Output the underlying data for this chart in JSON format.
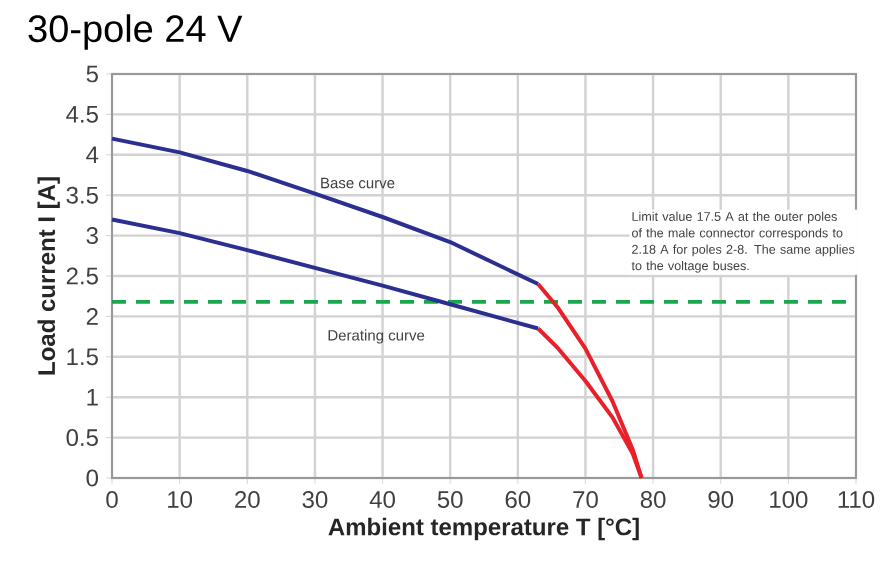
{
  "chart_data": {
    "type": "line",
    "title": "30-pole 24 V",
    "xlabel": "Ambient temperature T [°C]",
    "ylabel": "Load current I [A]",
    "xlim": [
      0,
      110
    ],
    "ylim": [
      0,
      5
    ],
    "xticks": [
      0,
      10,
      20,
      30,
      40,
      50,
      60,
      70,
      80,
      90,
      100,
      110
    ],
    "yticks": [
      0,
      0.5,
      1,
      1.5,
      2,
      2.5,
      3,
      3.5,
      4,
      4.5,
      5
    ],
    "grid": true,
    "marker": "none",
    "line_style": "solid",
    "series": [
      {
        "color": "#2b2f8f",
        "x": [
          0,
          10,
          20,
          30,
          40,
          50,
          63
        ],
        "values": [
          4.2,
          4.03,
          3.8,
          3.52,
          3.23,
          2.92,
          2.4
        ]
      },
      {
        "color": "#e8202a",
        "x": [
          63,
          66,
          70,
          74,
          77,
          78.3
        ],
        "values": [
          2.4,
          2.1,
          1.6,
          0.95,
          0.35,
          0
        ]
      },
      {
        "color": "#2b2f8f",
        "x": [
          0,
          10,
          20,
          30,
          40,
          50,
          63
        ],
        "values": [
          3.2,
          3.03,
          2.82,
          2.6,
          2.38,
          2.15,
          1.85
        ]
      },
      {
        "color": "#e8202a",
        "x": [
          63,
          66,
          70,
          74,
          77,
          78.3
        ],
        "values": [
          1.85,
          1.6,
          1.2,
          0.75,
          0.3,
          0
        ]
      }
    ],
    "ref_lines": [
      {
        "axis": "y",
        "value": 2.18,
        "color": "#1aa64a",
        "line_style": "dashed"
      }
    ],
    "annotations": [
      "Base curve",
      "Derating curve",
      "Limit value 17.5 A at the outer poles of the male connector corresponds to 2.18 A for poles 2-8. The same applies to the voltage buses."
    ]
  }
}
